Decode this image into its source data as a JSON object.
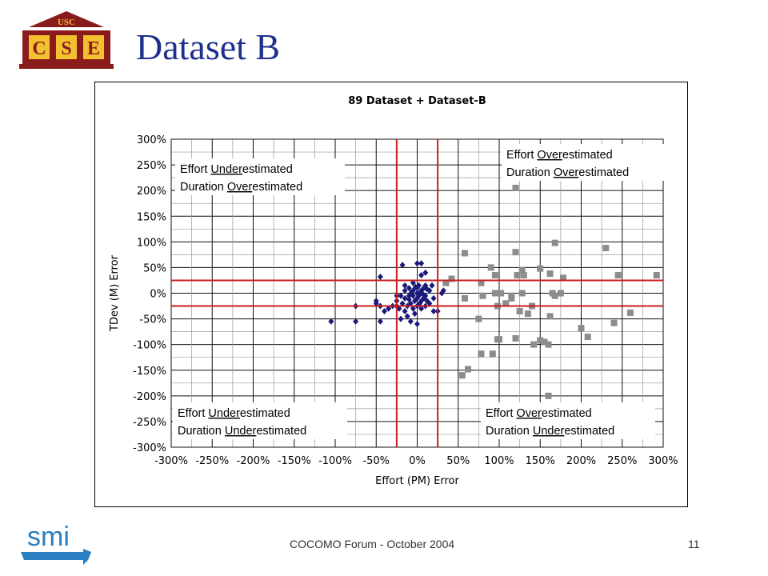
{
  "slide": {
    "title": "Dataset B",
    "footer": "COCOMO Forum - October 2004",
    "page_number": "11",
    "logo_text": "USC CSE",
    "bottom_logo_text": "smi"
  },
  "chart_data": {
    "type": "scatter",
    "title": "89 Dataset + Dataset-B",
    "xlabel": "Effort (PM) Error",
    "ylabel": "TDev (M) Error",
    "xlim": [
      -300,
      300
    ],
    "ylim": [
      -300,
      300
    ],
    "x_ticks": [
      "-300%",
      "-250%",
      "-200%",
      "-150%",
      "-100%",
      "-50%",
      "0%",
      "50%",
      "100%",
      "150%",
      "200%",
      "250%",
      "300%"
    ],
    "y_ticks": [
      "300%",
      "250%",
      "200%",
      "150%",
      "100%",
      "50%",
      "0%",
      "-50%",
      "-100%",
      "-150%",
      "-200%",
      "-250%",
      "-300%"
    ],
    "grid": true,
    "reference_lines": {
      "x": [
        -25,
        25
      ],
      "y": [
        -25,
        25
      ],
      "color": "#c81e1e"
    },
    "annotations": [
      {
        "line1": "Effort Underestimated",
        "line2_pre": "Duration ",
        "line2_u": "Over",
        "line2_post": "estimated",
        "line1_u": "Under"
      },
      {
        "line1": "Effort Overestimated",
        "line2_pre": "Duration ",
        "line2_u": "Over",
        "line2_post": "estimated",
        "line1_u": "Over"
      },
      {
        "line1": "Effort Underestimated",
        "line2_pre": "Duration ",
        "line2_u": "Under",
        "line2_post": "estimated",
        "line1_u": "Under"
      },
      {
        "line1": "Effort Overestimated",
        "line2_pre": "Duration ",
        "line2_u": "Under",
        "line2_post": "estimated",
        "line1_u": "Over"
      }
    ],
    "series": [
      {
        "marker": "diamond",
        "color": "#1a1a7a",
        "points": [
          [
            -105,
            -55
          ],
          [
            -75,
            -55
          ],
          [
            -45,
            -55
          ],
          [
            -75,
            -25
          ],
          [
            -50,
            -15
          ],
          [
            -50,
            -20
          ],
          [
            -45,
            -25
          ],
          [
            -40,
            -35
          ],
          [
            -35,
            -30
          ],
          [
            -30,
            -25
          ],
          [
            -25,
            -5
          ],
          [
            -25,
            -15
          ],
          [
            -25,
            -25
          ],
          [
            -22,
            -30
          ],
          [
            -20,
            -50
          ],
          [
            -18,
            -20
          ],
          [
            -15,
            -35
          ],
          [
            -15,
            -10
          ],
          [
            -15,
            5
          ],
          [
            -15,
            15
          ],
          [
            -12,
            -45
          ],
          [
            -12,
            -25
          ],
          [
            -10,
            -5
          ],
          [
            -10,
            10
          ],
          [
            -8,
            -20
          ],
          [
            -8,
            -55
          ],
          [
            -5,
            -5
          ],
          [
            -5,
            5
          ],
          [
            -5,
            -30
          ],
          [
            -5,
            20
          ],
          [
            -3,
            -15
          ],
          [
            -3,
            -40
          ],
          [
            0,
            -10
          ],
          [
            0,
            0
          ],
          [
            0,
            10
          ],
          [
            0,
            -25
          ],
          [
            0,
            -60
          ],
          [
            2,
            -5
          ],
          [
            2,
            15
          ],
          [
            3,
            -20
          ],
          [
            5,
            5
          ],
          [
            5,
            -15
          ],
          [
            5,
            35
          ],
          [
            5,
            -30
          ],
          [
            8,
            -10
          ],
          [
            8,
            10
          ],
          [
            10,
            -25
          ],
          [
            10,
            -5
          ],
          [
            10,
            15
          ],
          [
            12,
            -15
          ],
          [
            15,
            -20
          ],
          [
            15,
            5
          ],
          [
            18,
            15
          ],
          [
            20,
            -10
          ],
          [
            20,
            -35
          ],
          [
            -18,
            55
          ],
          [
            0,
            58
          ],
          [
            5,
            58
          ],
          [
            -45,
            32
          ],
          [
            10,
            40
          ],
          [
            -2,
            12
          ],
          [
            -7,
            2
          ],
          [
            3,
            0
          ],
          [
            7,
            -2
          ],
          [
            -10,
            -12
          ],
          [
            12,
            8
          ],
          [
            -20,
            -5
          ],
          [
            25,
            -35
          ],
          [
            30,
            0
          ],
          [
            32,
            5
          ]
        ]
      },
      {
        "marker": "square",
        "color": "#8c8c8c",
        "points": [
          [
            58,
            78
          ],
          [
            55,
            -160
          ],
          [
            62,
            -148
          ],
          [
            58,
            -10
          ],
          [
            42,
            28
          ],
          [
            35,
            20
          ],
          [
            75,
            -50
          ],
          [
            78,
            20
          ],
          [
            80,
            -5
          ],
          [
            78,
            -118
          ],
          [
            90,
            50
          ],
          [
            92,
            -118
          ],
          [
            95,
            35
          ],
          [
            95,
            0
          ],
          [
            98,
            -25
          ],
          [
            98,
            -90
          ],
          [
            100,
            -90
          ],
          [
            102,
            0
          ],
          [
            108,
            -20
          ],
          [
            115,
            -5
          ],
          [
            115,
            -10
          ],
          [
            120,
            205
          ],
          [
            120,
            80
          ],
          [
            120,
            -88
          ],
          [
            122,
            35
          ],
          [
            125,
            -35
          ],
          [
            128,
            45
          ],
          [
            128,
            0
          ],
          [
            130,
            35
          ],
          [
            135,
            -40
          ],
          [
            140,
            -25
          ],
          [
            142,
            -100
          ],
          [
            150,
            48
          ],
          [
            150,
            -92
          ],
          [
            155,
            -95
          ],
          [
            160,
            -100
          ],
          [
            162,
            -45
          ],
          [
            162,
            38
          ],
          [
            165,
            0
          ],
          [
            168,
            -5
          ],
          [
            168,
            98
          ],
          [
            175,
            0
          ],
          [
            178,
            30
          ],
          [
            200,
            -68
          ],
          [
            208,
            -85
          ],
          [
            230,
            88
          ],
          [
            240,
            -58
          ],
          [
            245,
            35
          ],
          [
            260,
            -38
          ],
          [
            292,
            35
          ],
          [
            160,
            -200
          ]
        ]
      }
    ]
  }
}
